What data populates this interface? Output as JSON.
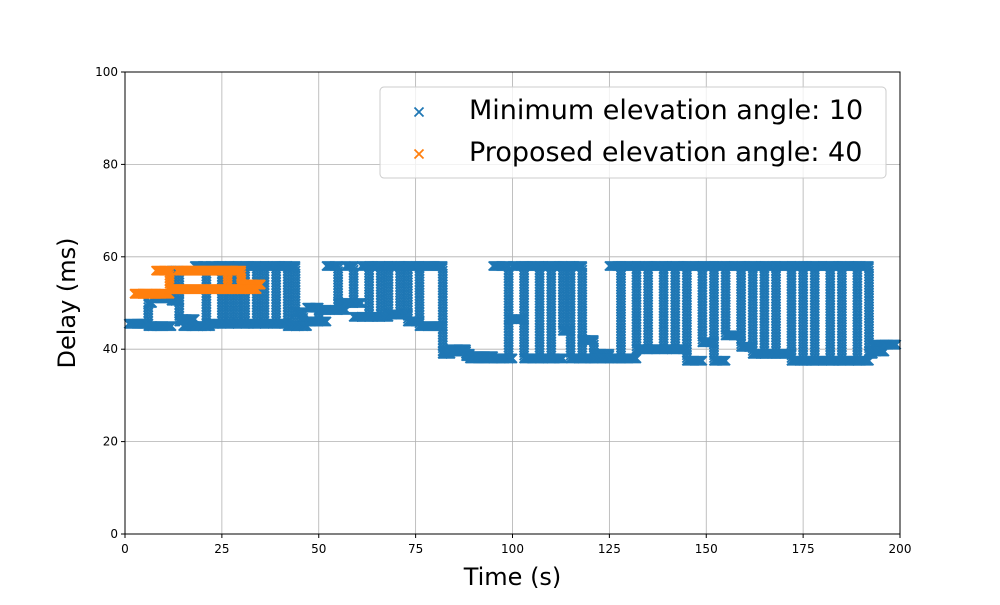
{
  "chart_data": {
    "type": "scatter",
    "xlabel": "Time (s)",
    "ylabel": "Delay (ms)",
    "xlim": [
      0,
      200
    ],
    "ylim": [
      0,
      100
    ],
    "x_ticks": [
      0,
      25,
      50,
      75,
      100,
      125,
      150,
      175,
      200
    ],
    "y_ticks": [
      0,
      20,
      40,
      60,
      80,
      100
    ],
    "grid": true,
    "legend_position": "top-right",
    "marker": "x",
    "series": [
      {
        "name": "Minimum elevation angle: 10",
        "color": "#1f77b4",
        "segments": [
          [
            1,
            45.5
          ],
          [
            6,
            45.5,
            50
          ],
          [
            7,
            45
          ],
          [
            12,
            51,
            57
          ],
          [
            13,
            50.5
          ],
          [
            14,
            57,
            46
          ],
          [
            15,
            46.5
          ],
          [
            18,
            45
          ],
          [
            21,
            58,
            45
          ],
          [
            22,
            45.5
          ],
          [
            25,
            58,
            45.5
          ],
          [
            27,
            58,
            45.5
          ],
          [
            29,
            58,
            45.5
          ],
          [
            31,
            58,
            45.5
          ],
          [
            34,
            58,
            45.5
          ],
          [
            36,
            58,
            45.5
          ],
          [
            39,
            58,
            45.5
          ],
          [
            42,
            58,
            45
          ],
          [
            44,
            58,
            45
          ],
          [
            46,
            48,
            45
          ],
          [
            47,
            46
          ],
          [
            50,
            49,
            46
          ],
          [
            52,
            48.5
          ],
          [
            55,
            58,
            48.5
          ],
          [
            57,
            50
          ],
          [
            59,
            58,
            50
          ],
          [
            61,
            47
          ],
          [
            63,
            58,
            47
          ],
          [
            66,
            58,
            47
          ],
          [
            68,
            58,
            47.5
          ],
          [
            71,
            58,
            47.5
          ],
          [
            73,
            58,
            46
          ],
          [
            76,
            58,
            45
          ],
          [
            82,
            58,
            39
          ],
          [
            84,
            39.5
          ],
          [
            88,
            40,
            39
          ],
          [
            89,
            38.5
          ],
          [
            95,
            38
          ],
          [
            99,
            58,
            38
          ],
          [
            100,
            46.5
          ],
          [
            103,
            58,
            38
          ],
          [
            107,
            58,
            38
          ],
          [
            110,
            58,
            38
          ],
          [
            113,
            58,
            44
          ],
          [
            115,
            58,
            38
          ],
          [
            118,
            58,
            38
          ],
          [
            121,
            42,
            38
          ],
          [
            125,
            39,
            38
          ],
          [
            128,
            58,
            38
          ],
          [
            132,
            58,
            40
          ],
          [
            135,
            58,
            40
          ],
          [
            139,
            58,
            40
          ],
          [
            142,
            58,
            40
          ],
          [
            145,
            58,
            37.5
          ],
          [
            149,
            58,
            41.5
          ],
          [
            152,
            58,
            37.5
          ],
          [
            155,
            58,
            43
          ],
          [
            159,
            58,
            40.5
          ],
          [
            162,
            58,
            39
          ],
          [
            165,
            58,
            39
          ],
          [
            168,
            58,
            39
          ],
          [
            172,
            58,
            37.5
          ],
          [
            175,
            58,
            37.5
          ],
          [
            178,
            58,
            37.5
          ],
          [
            182,
            58,
            37.5
          ],
          [
            185,
            58,
            37.5
          ],
          [
            189,
            58,
            37.5
          ],
          [
            192,
            58,
            39
          ],
          [
            193,
            39.5
          ],
          [
            196,
            41
          ],
          [
            199,
            41
          ]
        ]
      },
      {
        "name": "Proposed elevation angle: 40",
        "color": "#ff7f0e",
        "segments": [
          [
            2.5,
            52
          ],
          [
            8,
            52
          ],
          [
            11.5,
            57,
            53
          ],
          [
            13.5,
            53
          ],
          [
            26.5,
            57,
            53
          ],
          [
            30,
            57,
            53
          ],
          [
            34,
            54
          ],
          [
            35,
            54
          ]
        ]
      }
    ]
  }
}
